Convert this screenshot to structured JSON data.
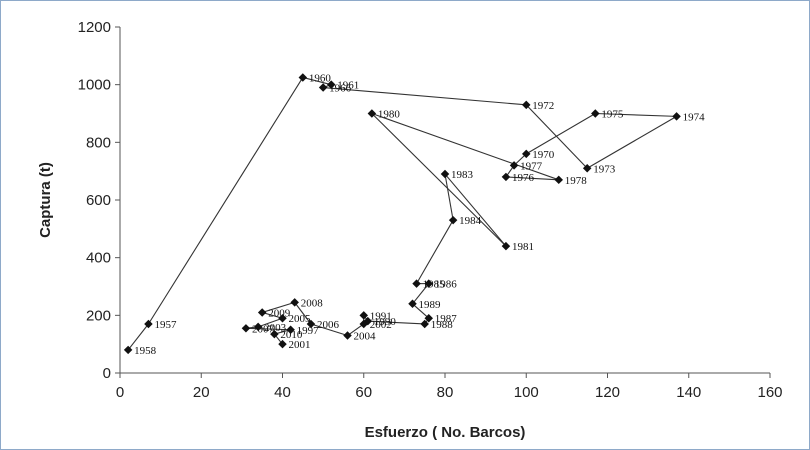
{
  "chart_data": {
    "type": "scatter",
    "xlabel": "Esfuerzo ( No. Barcos)",
    "ylabel": "Captura (t)",
    "xlim": [
      0,
      160
    ],
    "ylim": [
      0,
      1200
    ],
    "x_ticks": [
      "0",
      "20",
      "40",
      "60",
      "80",
      "100",
      "120",
      "140",
      "160"
    ],
    "y_ticks": [
      "0",
      "200",
      "400",
      "600",
      "800",
      "1000",
      "1200"
    ],
    "grid": false,
    "legend": "none",
    "line_color": "#333333",
    "series": [
      {
        "points": [
          {
            "label": "1958",
            "x": 2,
            "y": 80
          },
          {
            "label": "1957",
            "x": 7,
            "y": 170
          },
          {
            "label": "1960",
            "x": 45,
            "y": 1025
          },
          {
            "label": "1961",
            "x": 52,
            "y": 1000
          },
          {
            "label": "1966",
            "x": 50,
            "y": 990
          },
          {
            "label": "1972",
            "x": 100,
            "y": 930
          },
          {
            "label": "1973",
            "x": 115,
            "y": 710
          },
          {
            "label": "1974",
            "x": 137,
            "y": 890
          },
          {
            "label": "1975",
            "x": 117,
            "y": 900
          },
          {
            "label": "1970",
            "x": 100,
            "y": 760
          },
          {
            "label": "1977",
            "x": 97,
            "y": 720
          },
          {
            "label": "1976",
            "x": 95,
            "y": 680
          },
          {
            "label": "1978",
            "x": 108,
            "y": 670
          },
          {
            "label": "1980",
            "x": 62,
            "y": 900
          },
          {
            "label": "1981",
            "x": 95,
            "y": 440
          },
          {
            "label": "1983",
            "x": 80,
            "y": 690
          },
          {
            "label": "1984",
            "x": 82,
            "y": 530
          },
          {
            "label": "1985",
            "x": 73,
            "y": 310
          },
          {
            "label": "1986",
            "x": 76,
            "y": 310
          },
          {
            "label": "1989",
            "x": 72,
            "y": 240
          },
          {
            "label": "1987",
            "x": 76,
            "y": 190
          },
          {
            "label": "1988",
            "x": 75,
            "y": 170
          },
          {
            "label": "1990",
            "x": 61,
            "y": 180
          },
          {
            "label": "1991",
            "x": 60,
            "y": 200
          },
          {
            "label": "2002",
            "x": 60,
            "y": 170
          },
          {
            "label": "2004",
            "x": 56,
            "y": 130
          },
          {
            "label": "2006",
            "x": 47,
            "y": 170
          },
          {
            "label": "2008",
            "x": 43,
            "y": 245
          },
          {
            "label": "2009",
            "x": 35,
            "y": 210
          },
          {
            "label": "2005",
            "x": 40,
            "y": 190
          },
          {
            "label": "2003",
            "x": 34,
            "y": 160
          },
          {
            "label": "2007",
            "x": 31,
            "y": 155
          },
          {
            "label": "1997",
            "x": 42,
            "y": 150
          },
          {
            "label": "2010",
            "x": 38,
            "y": 135
          },
          {
            "label": "2001",
            "x": 40,
            "y": 100
          }
        ]
      }
    ]
  }
}
